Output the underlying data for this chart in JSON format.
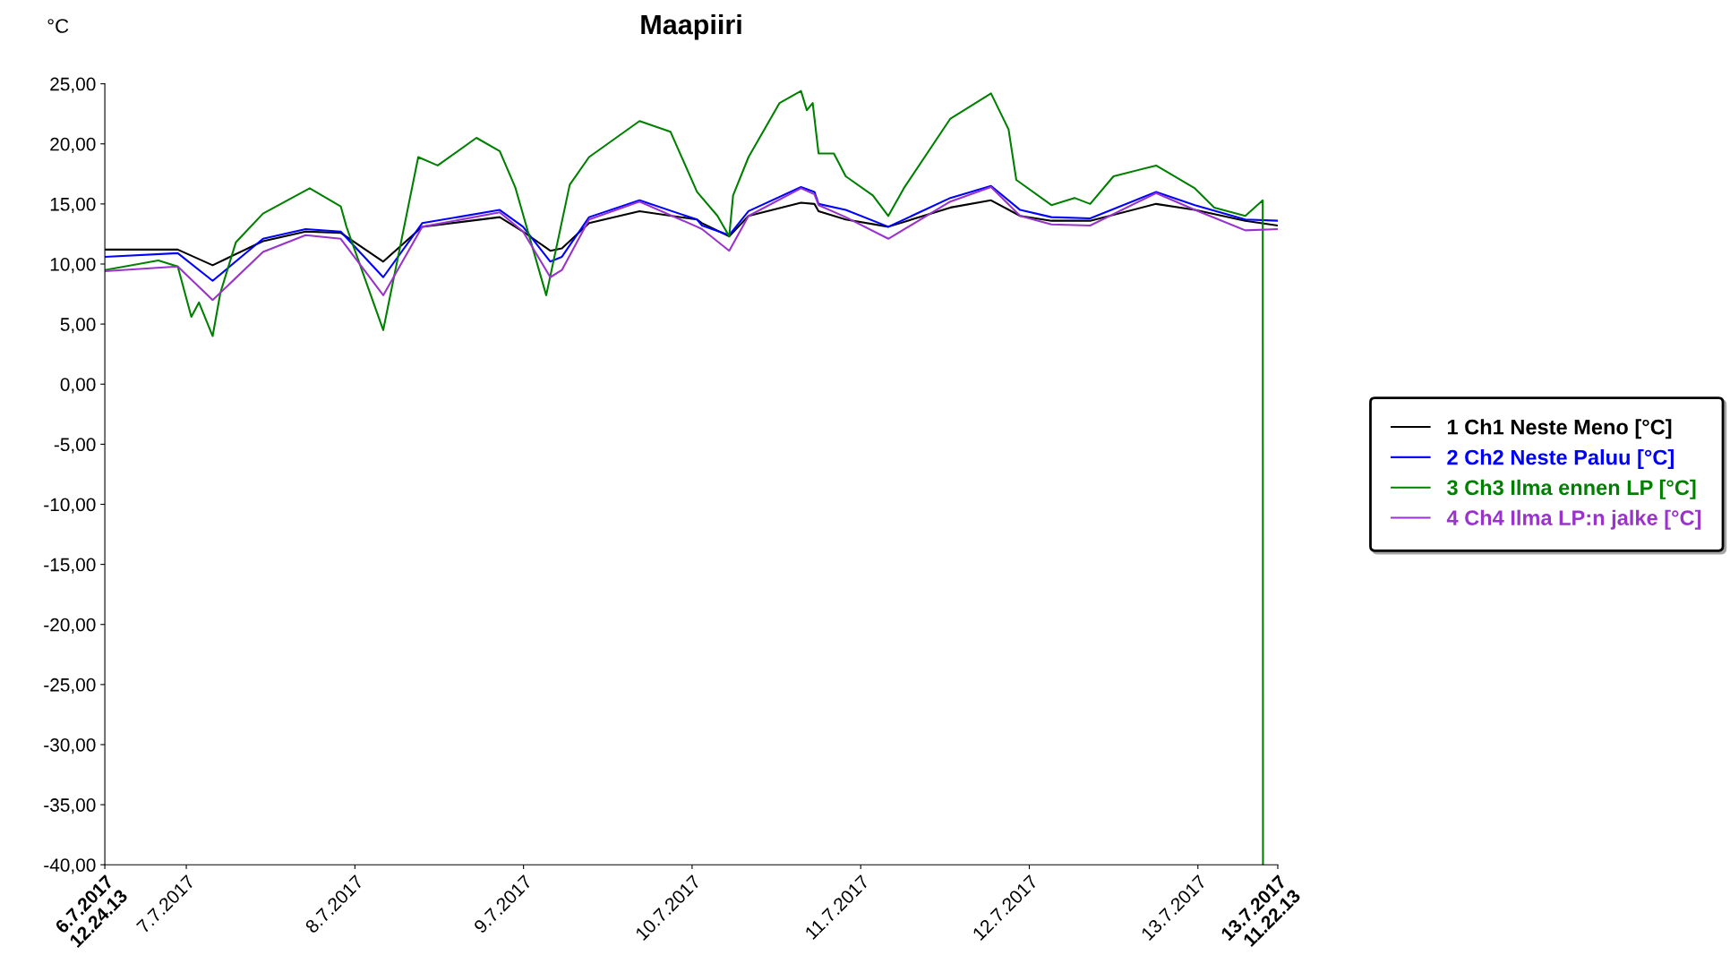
{
  "chart_data": {
    "type": "line",
    "title": "Maapiiri",
    "ylabel": "°C",
    "x": [
      "2017-07-06T12:25",
      "2017-07-06T22:47",
      "2017-07-07T03:45",
      "2017-07-07T10:55",
      "2017-07-07T16:59",
      "2017-07-07T21:59",
      "2017-07-08T04:02",
      "2017-07-08T09:35",
      "2017-07-08T20:37",
      "2017-07-08T23:56",
      "2017-07-09T03:49",
      "2017-07-09T05:28",
      "2017-07-09T09:20",
      "2017-07-09T16:31",
      "2017-07-10T00:42",
      "2017-07-10T01:25",
      "2017-07-10T05:17",
      "2017-07-10T08:02",
      "2017-07-10T15:30",
      "2017-07-10T17:25",
      "2017-07-10T18:00",
      "2017-07-10T21:52",
      "2017-07-11T03:56",
      "2017-07-11T12:46",
      "2017-07-11T18:33",
      "2017-07-11T22:42",
      "2017-07-12T03:09",
      "2017-07-12T08:40",
      "2017-07-12T18:03",
      "2017-07-12T23:34",
      "2017-07-13T06:45",
      "2017-07-13T11:22"
    ],
    "series": [
      {
        "name": "1 Ch1 Neste Meno [°C]",
        "color": "#000000",
        "values": [
          11.2,
          11.2,
          9.9,
          11.9,
          12.7,
          12.6,
          10.2,
          13.1,
          13.9,
          12.7,
          11.1,
          11.3,
          13.4,
          14.4,
          13.7,
          13.4,
          12.3,
          14.0,
          15.1,
          15.0,
          14.4,
          13.7,
          13.1,
          14.7,
          15.3,
          14.0,
          13.6,
          13.6,
          15.0,
          14.5,
          13.6,
          13.2
        ]
      },
      {
        "name": "2 Ch2 Neste Paluu [°C]",
        "color": "#0000ff",
        "values": [
          10.6,
          10.9,
          8.6,
          12.1,
          12.9,
          12.7,
          8.9,
          13.4,
          14.5,
          13.1,
          10.2,
          10.6,
          13.9,
          15.3,
          13.7,
          13.2,
          12.4,
          14.4,
          16.4,
          16.0,
          15.0,
          14.5,
          13.1,
          15.5,
          16.5,
          14.5,
          13.9,
          13.8,
          16.0,
          14.9,
          13.7,
          13.6
        ]
      },
      {
        "name": "3 Ch3 Ilma ennen LP [°C]",
        "color": "#008000",
        "x": [
          "2017-07-06T12:25",
          "2017-07-06T20:01",
          "2017-07-06T22:47",
          "2017-07-07T00:43",
          "2017-07-07T01:48",
          "2017-07-07T03:45",
          "2017-07-07T04:51",
          "2017-07-07T07:03",
          "2017-07-07T10:55",
          "2017-07-07T17:34",
          "2017-07-07T21:59",
          "2017-07-07T22:48",
          "2017-07-08T04:02",
          "2017-07-08T09:01",
          "2017-07-08T11:47",
          "2017-07-08T17:18",
          "2017-07-08T20:37",
          "2017-07-08T22:49",
          "2017-07-09T03:14",
          "2017-07-09T06:35",
          "2017-07-09T09:20",
          "2017-07-09T16:31",
          "2017-07-09T20:56",
          "2017-07-10T00:42",
          "2017-07-10T03:37",
          "2017-07-10T05:17",
          "2017-07-10T05:50",
          "2017-07-10T08:02",
          "2017-07-10T12:27",
          "2017-07-10T15:30",
          "2017-07-10T16:20",
          "2017-07-10T17:10",
          "2017-07-10T18:00",
          "2017-07-10T20:11",
          "2017-07-10T21:52",
          "2017-07-11T01:44",
          "2017-07-11T03:56",
          "2017-07-11T06:08",
          "2017-07-11T12:46",
          "2017-07-11T18:33",
          "2017-07-11T21:03",
          "2017-07-11T22:09",
          "2017-07-12T03:09",
          "2017-07-12T06:26",
          "2017-07-12T08:40",
          "2017-07-12T11:59",
          "2017-07-12T18:03",
          "2017-07-12T23:34",
          "2017-07-13T02:20",
          "2017-07-13T06:45",
          "2017-07-13T09:14",
          "2017-07-13T09:16"
        ],
        "values": [
          9.5,
          10.3,
          9.8,
          5.6,
          6.8,
          4.0,
          7.6,
          11.8,
          14.2,
          16.3,
          14.8,
          13.1,
          4.5,
          18.9,
          18.2,
          20.5,
          19.4,
          16.4,
          7.4,
          16.6,
          18.9,
          21.9,
          21.0,
          16.0,
          14.0,
          12.3,
          15.7,
          18.9,
          23.4,
          24.4,
          22.8,
          23.4,
          19.2,
          19.2,
          17.3,
          15.7,
          14.0,
          16.3,
          22.1,
          24.2,
          21.2,
          17.0,
          14.9,
          15.5,
          15.0,
          17.3,
          18.2,
          16.3,
          14.7,
          14.0,
          15.3,
          -40
        ]
      },
      {
        "name": "4 Ch4 Ilma LP:n jalke [°C]",
        "color": "#9933cc",
        "values": [
          9.4,
          9.8,
          7.0,
          11.0,
          12.4,
          12.1,
          7.4,
          13.1,
          14.3,
          12.7,
          8.9,
          9.5,
          13.7,
          15.2,
          13.1,
          12.9,
          11.1,
          14.0,
          16.3,
          15.8,
          14.9,
          13.9,
          12.1,
          15.2,
          16.4,
          14.0,
          13.3,
          13.2,
          15.9,
          14.5,
          12.8,
          12.9
        ]
      }
    ],
    "xlim": [
      "2017-07-06T12:24:13",
      "2017-07-13T11:22:13"
    ],
    "xticks": [
      {
        "value": "2017-07-06T12:24:13",
        "label": "6.7.2017\n12.24.13"
      },
      {
        "value": "2017-07-07",
        "label": "7.7.2017"
      },
      {
        "value": "2017-07-08",
        "label": "8.7.2017"
      },
      {
        "value": "2017-07-09",
        "label": "9.7.2017"
      },
      {
        "value": "2017-07-10",
        "label": "10.7.2017"
      },
      {
        "value": "2017-07-11",
        "label": "11.7.2017"
      },
      {
        "value": "2017-07-12",
        "label": "12.7.2017"
      },
      {
        "value": "2017-07-13",
        "label": "13.7.2017"
      },
      {
        "value": "2017-07-13T11:22:13",
        "label": "13.7.2017\n11.22.13"
      }
    ],
    "ylim": [
      -40,
      25
    ],
    "yticks": [
      {
        "value": 25,
        "label": "25,00"
      },
      {
        "value": 20,
        "label": "20,00"
      },
      {
        "value": 15,
        "label": "15,00"
      },
      {
        "value": 10,
        "label": "10,00"
      },
      {
        "value": 5,
        "label": "5,00"
      },
      {
        "value": 0,
        "label": "0,00"
      },
      {
        "value": -5,
        "label": "-5,00"
      },
      {
        "value": -10,
        "label": "-10,00"
      },
      {
        "value": -15,
        "label": "-15,00"
      },
      {
        "value": -20,
        "label": "-20,00"
      },
      {
        "value": -25,
        "label": "-25,00"
      },
      {
        "value": -30,
        "label": "-30,00"
      },
      {
        "value": -35,
        "label": "-35,00"
      },
      {
        "value": -40,
        "label": "-40,00"
      }
    ],
    "grid": false,
    "legend": "right",
    "marker": "none",
    "line_style": "solid"
  }
}
